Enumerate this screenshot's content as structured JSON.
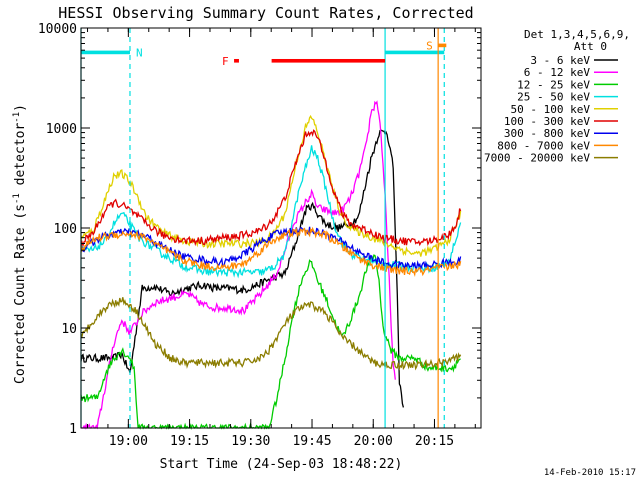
{
  "chart_data": {
    "type": "line",
    "title": "HESSI Observing Summary Count Rates, Corrected",
    "xlabel": "Start Time (24-Sep-03 18:48:22)",
    "ylabel_main": "Corrected Count Rate (s",
    "ylabel_sup1": "-1",
    "ylabel_mid": " detector",
    "ylabel_sup2": "-1",
    "ylabel_end": ")",
    "yscale": "log",
    "ylim": [
      1,
      10000
    ],
    "xlim_minutes": [
      0,
      98
    ],
    "x_ticks": [
      {
        "label": "19:00",
        "t": 11.6
      },
      {
        "label": "19:15",
        "t": 26.6
      },
      {
        "label": "19:30",
        "t": 41.6
      },
      {
        "label": "19:45",
        "t": 56.6
      },
      {
        "label": "20:00",
        "t": 71.6
      },
      {
        "label": "20:15",
        "t": 86.6
      }
    ],
    "y_ticks": [
      {
        "label": "1",
        "v": 1
      },
      {
        "label": "10",
        "v": 10
      },
      {
        "label": "100",
        "v": 100
      },
      {
        "label": "1000",
        "v": 1000
      },
      {
        "label": "10000",
        "v": 10000
      }
    ],
    "legend": {
      "header1": "Det 1,3,4,5,6,9,",
      "header2": "Att 0",
      "placement": "right"
    },
    "series": [
      {
        "name": "3 - 6 keV",
        "color": "#000000",
        "x": [
          0,
          4,
          8,
          10,
          12,
          15,
          18,
          22,
          26,
          30,
          33,
          36,
          40,
          44,
          48,
          50,
          53,
          55,
          56.5,
          58,
          60,
          63,
          66,
          68,
          71,
          73,
          75,
          76.5,
          77.5,
          78,
          79
        ],
        "y": [
          5,
          5,
          5,
          5.5,
          3.5,
          25,
          26,
          22,
          25,
          27,
          25,
          25,
          24,
          28,
          33,
          35,
          80,
          150,
          170,
          140,
          110,
          100,
          110,
          130,
          480,
          900,
          920,
          400,
          20,
          3,
          1.5
        ]
      },
      {
        "name": "6 - 12 keV",
        "color": "#ff00ff",
        "x": [
          0,
          4,
          8,
          10,
          12,
          15,
          18,
          22,
          26,
          30,
          33,
          36,
          40,
          44,
          48,
          50,
          52,
          55,
          56.5,
          58,
          60,
          62,
          64,
          66,
          68,
          70,
          71,
          72.5,
          73.5,
          74.5,
          75.5,
          76.5,
          77
        ],
        "y": [
          1,
          1,
          7,
          12,
          9,
          14,
          18,
          20,
          22,
          17,
          16,
          16,
          15,
          22,
          35,
          60,
          110,
          180,
          220,
          160,
          150,
          140,
          150,
          200,
          340,
          700,
          1400,
          1900,
          900,
          200,
          30,
          4,
          3
        ]
      },
      {
        "name": "12 - 25 keV",
        "color": "#00cc00",
        "x": [
          0,
          1,
          4,
          6,
          8,
          10,
          12,
          13,
          14,
          16,
          18,
          22,
          26,
          30,
          34,
          38,
          40,
          42,
          44,
          46,
          48,
          50,
          52,
          54,
          56,
          57,
          58,
          60,
          62,
          64,
          66,
          68,
          70,
          72,
          73,
          74,
          76,
          78,
          80,
          82,
          85,
          88,
          91,
          93
        ],
        "y": [
          2,
          2,
          2,
          3.5,
          5,
          6,
          5,
          4,
          1,
          1,
          1,
          1,
          1,
          1,
          1,
          1,
          1,
          1,
          1,
          1,
          2,
          5,
          14,
          30,
          45,
          40,
          30,
          20,
          12,
          8,
          12,
          20,
          40,
          55,
          30,
          10,
          6,
          5,
          5,
          5,
          4,
          4,
          4,
          5
        ]
      },
      {
        "name": "25 - 50 keV",
        "color": "#00e0e0",
        "x": [
          0,
          3,
          6,
          8,
          10,
          12,
          14,
          16,
          20,
          25,
          30,
          35,
          40,
          44,
          47,
          50,
          53,
          55,
          56.5,
          58,
          60,
          62,
          64,
          66,
          70,
          74,
          78,
          82,
          86,
          90,
          92,
          93
        ],
        "y": [
          60,
          60,
          75,
          110,
          140,
          110,
          80,
          70,
          55,
          42,
          37,
          36,
          36,
          36,
          40,
          55,
          200,
          400,
          620,
          500,
          250,
          110,
          70,
          55,
          48,
          44,
          42,
          40,
          40,
          45,
          80,
          110
        ]
      },
      {
        "name": "50 - 100 keV",
        "color": "#e0d000",
        "x": [
          0,
          3,
          6,
          8,
          10,
          12,
          14,
          16,
          20,
          25,
          30,
          35,
          40,
          44,
          47,
          50,
          53,
          55,
          56.5,
          58,
          60,
          62,
          64,
          66,
          70,
          74,
          78,
          82,
          86,
          90,
          92,
          93
        ],
        "y": [
          80,
          95,
          200,
          330,
          350,
          290,
          200,
          130,
          90,
          75,
          70,
          70,
          70,
          72,
          85,
          140,
          500,
          1000,
          1300,
          900,
          450,
          220,
          130,
          100,
          85,
          72,
          62,
          55,
          60,
          75,
          110,
          140
        ]
      },
      {
        "name": "100 - 300 keV",
        "color": "#e00000",
        "x": [
          0,
          3,
          6,
          8,
          10,
          12,
          14,
          16,
          20,
          25,
          30,
          35,
          40,
          44,
          47,
          50,
          53,
          55,
          56.5,
          58,
          60,
          62,
          64,
          66,
          70,
          74,
          78,
          82,
          86,
          90,
          92,
          93
        ],
        "y": [
          70,
          90,
          150,
          180,
          170,
          150,
          130,
          110,
          85,
          75,
          75,
          80,
          85,
          95,
          120,
          200,
          500,
          850,
          950,
          800,
          450,
          230,
          140,
          110,
          95,
          80,
          75,
          72,
          75,
          85,
          110,
          160
        ]
      },
      {
        "name": "300 - 800 keV",
        "color": "#0000ee",
        "x": [
          0,
          4,
          8,
          12,
          16,
          20,
          25,
          30,
          35,
          40,
          44,
          48,
          52,
          56,
          60,
          64,
          68,
          72,
          76,
          80,
          84,
          88,
          91,
          93
        ],
        "y": [
          60,
          78,
          88,
          92,
          82,
          65,
          52,
          48,
          45,
          55,
          72,
          88,
          95,
          95,
          88,
          72,
          58,
          48,
          43,
          42,
          42,
          44,
          46,
          48
        ]
      },
      {
        "name": "800 - 7000 keV",
        "color": "#ff8800",
        "x": [
          0,
          4,
          8,
          12,
          16,
          20,
          25,
          30,
          35,
          40,
          44,
          48,
          52,
          56,
          60,
          64,
          68,
          72,
          76,
          80,
          84,
          88,
          91,
          93
        ],
        "y": [
          62,
          80,
          86,
          88,
          80,
          62,
          48,
          42,
          40,
          44,
          60,
          80,
          90,
          92,
          85,
          65,
          50,
          42,
          38,
          37,
          37,
          40,
          42,
          44
        ]
      },
      {
        "name": "7000 - 20000 keV",
        "color": "#8b7d00",
        "x": [
          0,
          3,
          6,
          8,
          10,
          12,
          14,
          16,
          18,
          20,
          22,
          25,
          30,
          35,
          40,
          44,
          46,
          48,
          50,
          52,
          54,
          56,
          58,
          60,
          62,
          64,
          66,
          68,
          70,
          72,
          74,
          76,
          78,
          80,
          84,
          88,
          91,
          93
        ],
        "y": [
          8,
          12,
          16,
          18,
          19,
          17,
          14,
          10,
          7,
          6,
          5,
          4.5,
          4.5,
          4.5,
          4.5,
          5,
          6,
          8,
          11,
          14,
          16,
          17,
          16,
          14,
          11,
          8,
          7,
          6,
          5,
          4.5,
          4.3,
          4.3,
          4.3,
          4.3,
          4.3,
          4.5,
          5,
          5
        ]
      }
    ],
    "annotations": [
      {
        "label": "N",
        "color": "#00e0e0",
        "type": "night_bar",
        "ranges": [
          [
            0,
            12
          ],
          [
            74.5,
            89
          ]
        ],
        "value": 5700,
        "marker_lines": [
          0,
          12,
          74.5,
          89
        ]
      },
      {
        "label": "F",
        "color": "#ff0000",
        "type": "flare_bar",
        "ranges": [
          [
            37.5,
            38.7
          ],
          [
            46.7,
            74.5
          ]
        ],
        "value": 4700
      },
      {
        "label": "S",
        "color": "#ff8800",
        "type": "saa_bar",
        "ranges": [
          [
            87.5,
            89.5
          ]
        ],
        "value": 6700,
        "marker_lines": [
          87.5
        ]
      }
    ],
    "footer_date": "14-Feb-2010 15:17"
  }
}
